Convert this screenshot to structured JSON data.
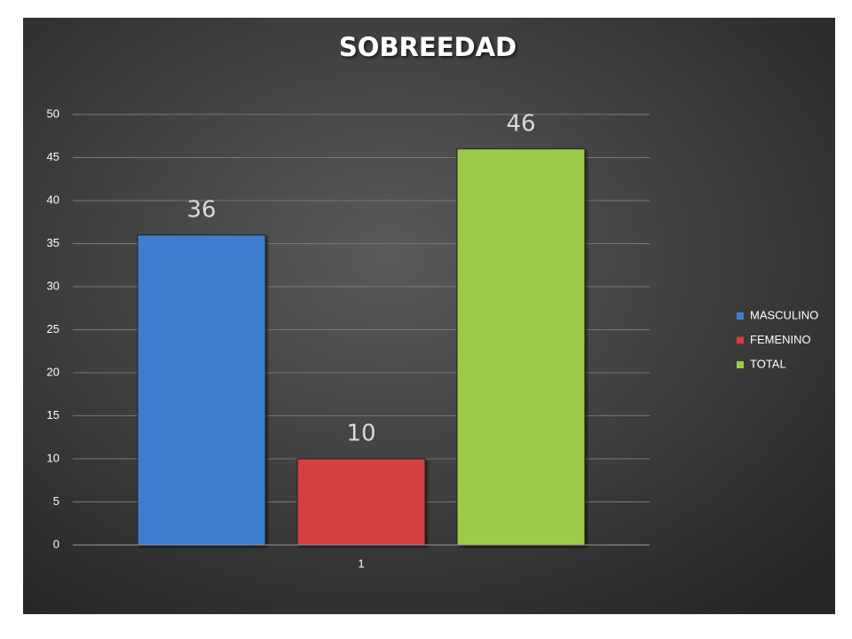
{
  "chart_data": {
    "type": "bar",
    "title": "SOBREEDAD",
    "categories": [
      "1"
    ],
    "series": [
      {
        "name": "MASCULINO",
        "color": "#3d7ed2",
        "values": [
          36
        ]
      },
      {
        "name": "FEMENINO",
        "color": "#d43f3f",
        "values": [
          10
        ]
      },
      {
        "name": "TOTAL",
        "color": "#9ccb4a",
        "values": [
          46
        ]
      }
    ],
    "ylim": [
      0,
      50
    ],
    "yticks": [
      0,
      5,
      10,
      15,
      20,
      25,
      30,
      35,
      40,
      45,
      50
    ],
    "grid": true,
    "legend": "right",
    "data_labels": true
  }
}
